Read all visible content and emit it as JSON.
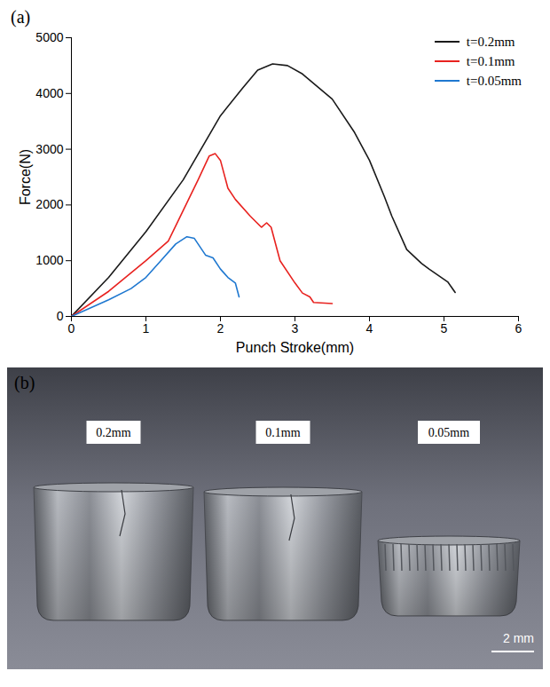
{
  "chart_data": {
    "type": "line",
    "panel_label": "(a)",
    "xlabel": "Punch Stroke(mm)",
    "ylabel": "Force(N)",
    "xlim": [
      0,
      6
    ],
    "xticks": [
      0,
      1,
      2,
      3,
      4,
      5,
      6
    ],
    "ylim": [
      0,
      5000
    ],
    "yticks": [
      0,
      1000,
      2000,
      3000,
      4000,
      5000
    ],
    "grid": false,
    "legend": "top-right",
    "series": [
      {
        "name": "t=0.2mm",
        "color": "#1a1a1a",
        "line_style": "solid",
        "x": [
          0,
          0.5,
          1,
          1.5,
          2,
          2.3,
          2.5,
          2.7,
          2.9,
          3.1,
          3.5,
          3.8,
          4,
          4.2,
          4.3,
          4.5,
          4.7,
          4.8,
          5.05,
          5.15
        ],
        "values": [
          0,
          700,
          1520,
          2450,
          3600,
          4100,
          4420,
          4530,
          4500,
          4350,
          3900,
          3300,
          2800,
          2150,
          1800,
          1200,
          950,
          850,
          620,
          430
        ]
      },
      {
        "name": "t=0.1mm",
        "color": "#e8221f",
        "line_style": "solid",
        "x": [
          0,
          0.5,
          1,
          1.3,
          1.5,
          1.7,
          1.85,
          1.93,
          2.0,
          2.1,
          2.2,
          2.4,
          2.55,
          2.62,
          2.68,
          2.8,
          3.0,
          3.1,
          3.2,
          3.25,
          3.5
        ],
        "values": [
          0,
          450,
          1000,
          1350,
          1900,
          2450,
          2880,
          2920,
          2800,
          2300,
          2100,
          1800,
          1600,
          1680,
          1600,
          1000,
          600,
          420,
          350,
          250,
          230
        ]
      },
      {
        "name": "t=0.05mm",
        "color": "#1f78d0",
        "line_style": "solid",
        "x": [
          0,
          0.5,
          0.8,
          1,
          1.2,
          1.4,
          1.55,
          1.65,
          1.8,
          1.9,
          2.0,
          2.1,
          2.2,
          2.25
        ],
        "values": [
          0,
          300,
          500,
          700,
          1000,
          1300,
          1430,
          1400,
          1100,
          1050,
          850,
          700,
          600,
          350
        ]
      }
    ]
  },
  "photo": {
    "panel_label": "(b)",
    "sample_labels": [
      "0.2mm",
      "0.1mm",
      "0.05mm"
    ],
    "scale_bar": "2 mm"
  }
}
